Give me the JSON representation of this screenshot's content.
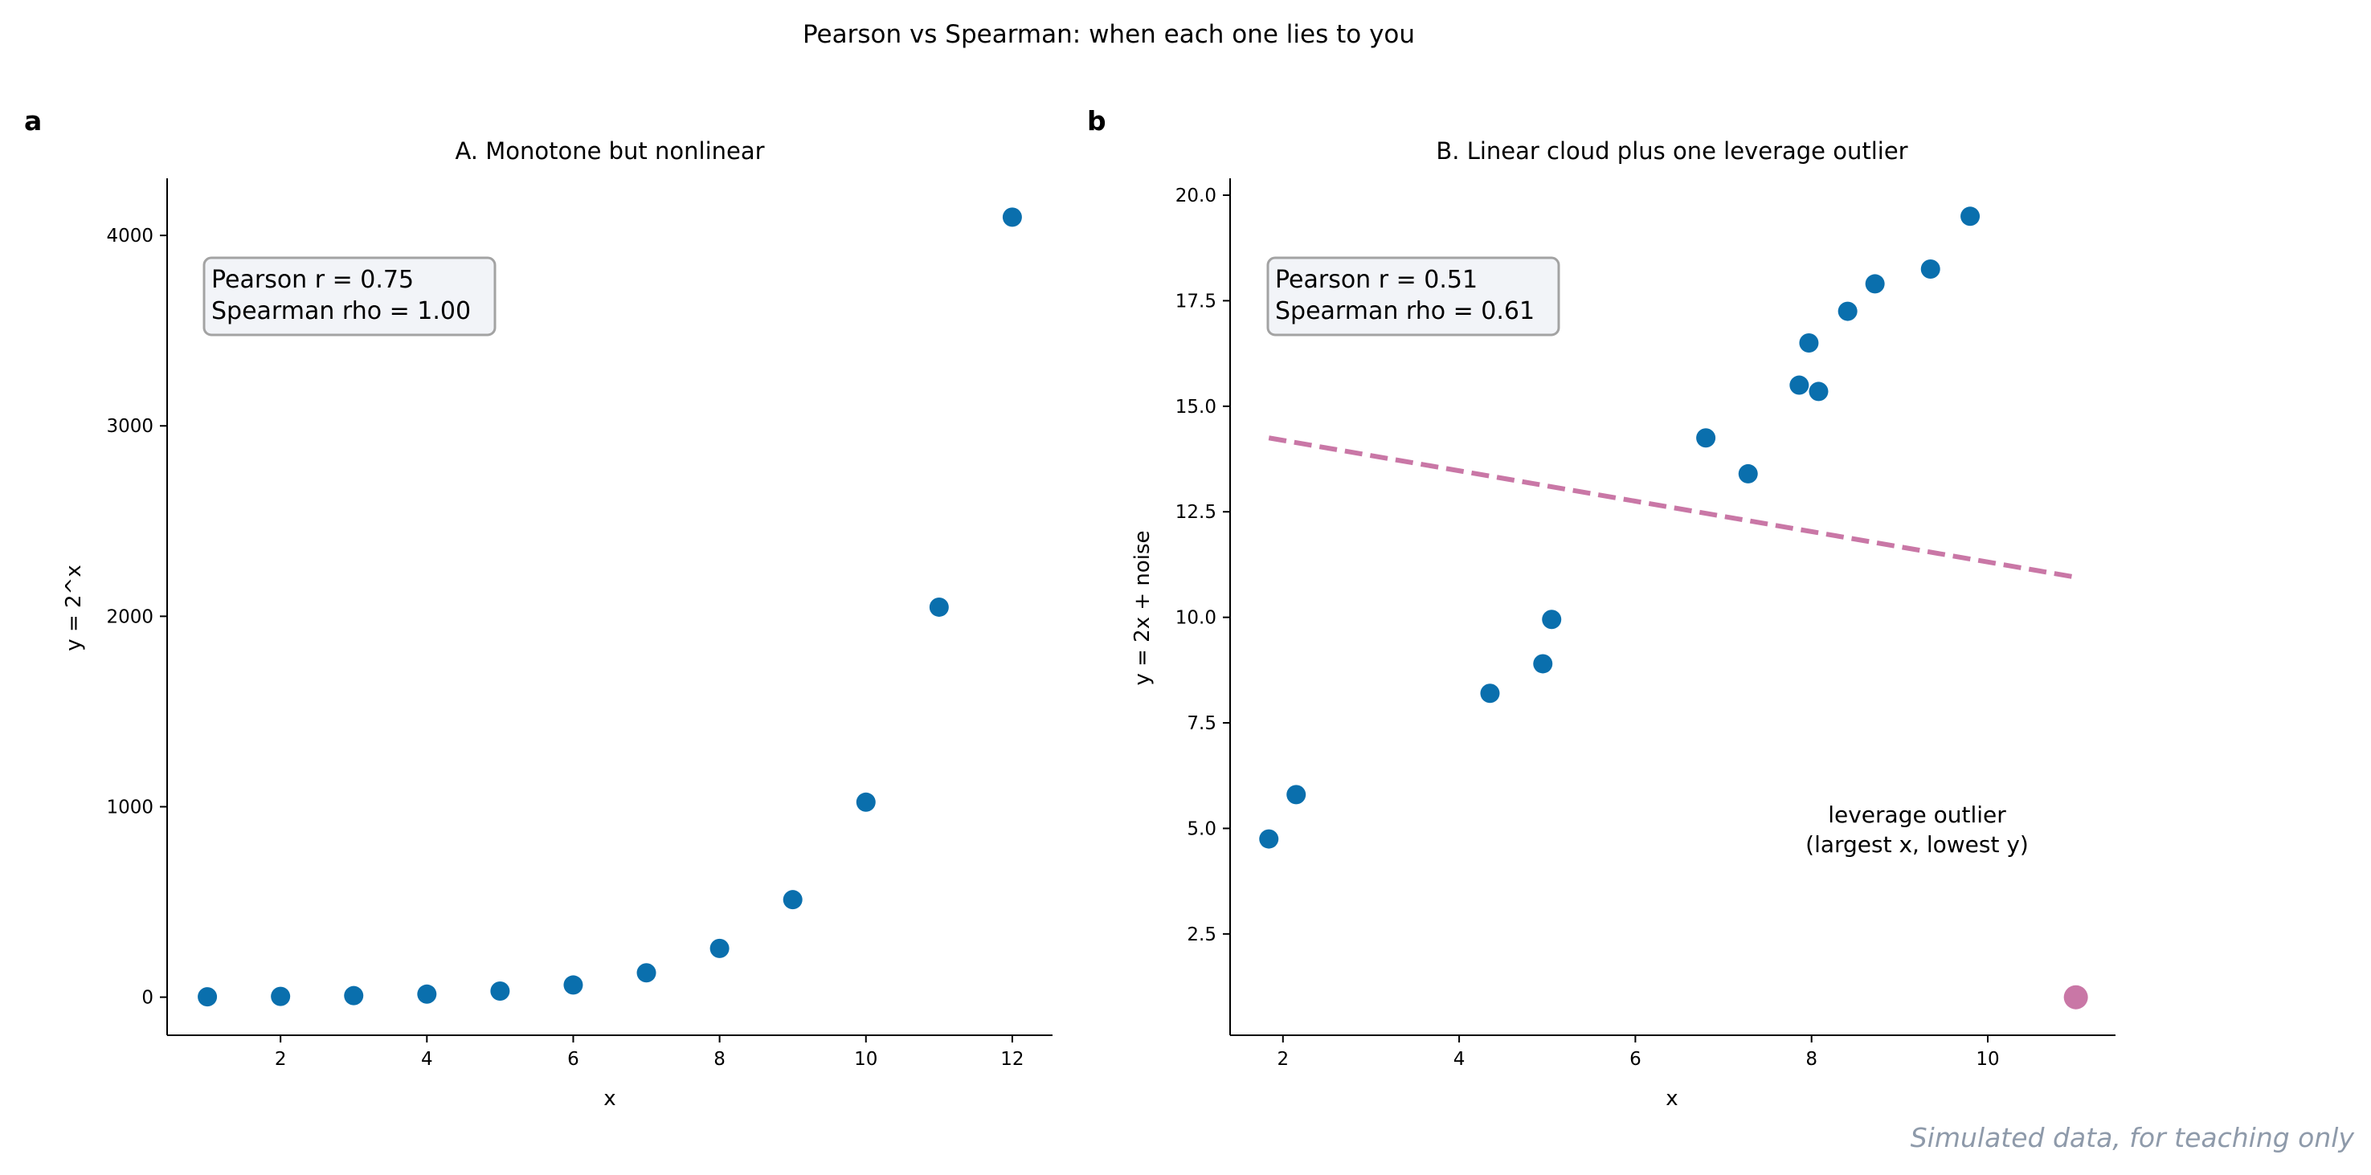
{
  "figure": {
    "suptitle": "Pearson vs Spearman: when each one lies to you",
    "footer": "Simulated data, for teaching only"
  },
  "colors": {
    "points": "#0a6fad",
    "outlier": "#c977a6",
    "fit_line": "#c977a6",
    "box_fill": "#f2f4f8",
    "box_edge": "#a3a3a3"
  },
  "chart_data": [
    {
      "type": "scatter",
      "panel_label": "a",
      "title": "A. Monotone but nonlinear",
      "xlabel": "x",
      "ylabel": "y = 2^x",
      "xlim": [
        0.45,
        12.55
      ],
      "ylim": [
        -200,
        4300
      ],
      "xticks": [
        2,
        4,
        6,
        8,
        10,
        12
      ],
      "yticks": [
        0,
        1000,
        2000,
        3000,
        4000
      ],
      "x": [
        1,
        2,
        3,
        4,
        5,
        6,
        7,
        8,
        9,
        10,
        11,
        12
      ],
      "y": [
        2,
        4,
        8,
        16,
        32,
        64,
        128,
        256,
        512,
        1024,
        2048,
        4096
      ],
      "stats": [
        "Pearson r = 0.75",
        "Spearman rho = 1.00"
      ],
      "grid": false,
      "legend": "none"
    },
    {
      "type": "scatter",
      "panel_label": "b",
      "title": "B. Linear cloud plus one leverage outlier",
      "xlabel": "x",
      "ylabel": "y = 2x + noise",
      "xlim": [
        1.4,
        11.45
      ],
      "ylim": [
        0.1,
        20.4
      ],
      "xticks": [
        2,
        4,
        6,
        8,
        10
      ],
      "yticks": [
        2.5,
        5.0,
        7.5,
        10.0,
        12.5,
        15.0,
        17.5,
        20.0
      ],
      "ytick_labels": [
        "2.5",
        "5.0",
        "7.5",
        "10.0",
        "12.5",
        "15.0",
        "17.5",
        "20.0"
      ],
      "x": [
        1.84,
        2.15,
        4.35,
        4.95,
        5.05,
        6.8,
        7.28,
        7.86,
        7.97,
        8.08,
        8.41,
        8.72,
        9.35,
        9.8
      ],
      "y": [
        4.75,
        5.8,
        8.2,
        8.9,
        9.95,
        14.25,
        13.4,
        15.5,
        16.5,
        15.35,
        17.25,
        17.9,
        18.25,
        19.5
      ],
      "outlier": {
        "x": 11.0,
        "y": 1.0
      },
      "fit_line": {
        "x": [
          1.84,
          11.0
        ],
        "y": [
          14.25,
          10.95
        ]
      },
      "annotation": [
        "leverage outlier",
        "(largest x, lowest y)"
      ],
      "annotation_at": {
        "x": 8.0,
        "y": 5.0
      },
      "stats": [
        "Pearson r = 0.51",
        "Spearman rho = 0.61"
      ],
      "grid": false,
      "legend": "none"
    }
  ]
}
